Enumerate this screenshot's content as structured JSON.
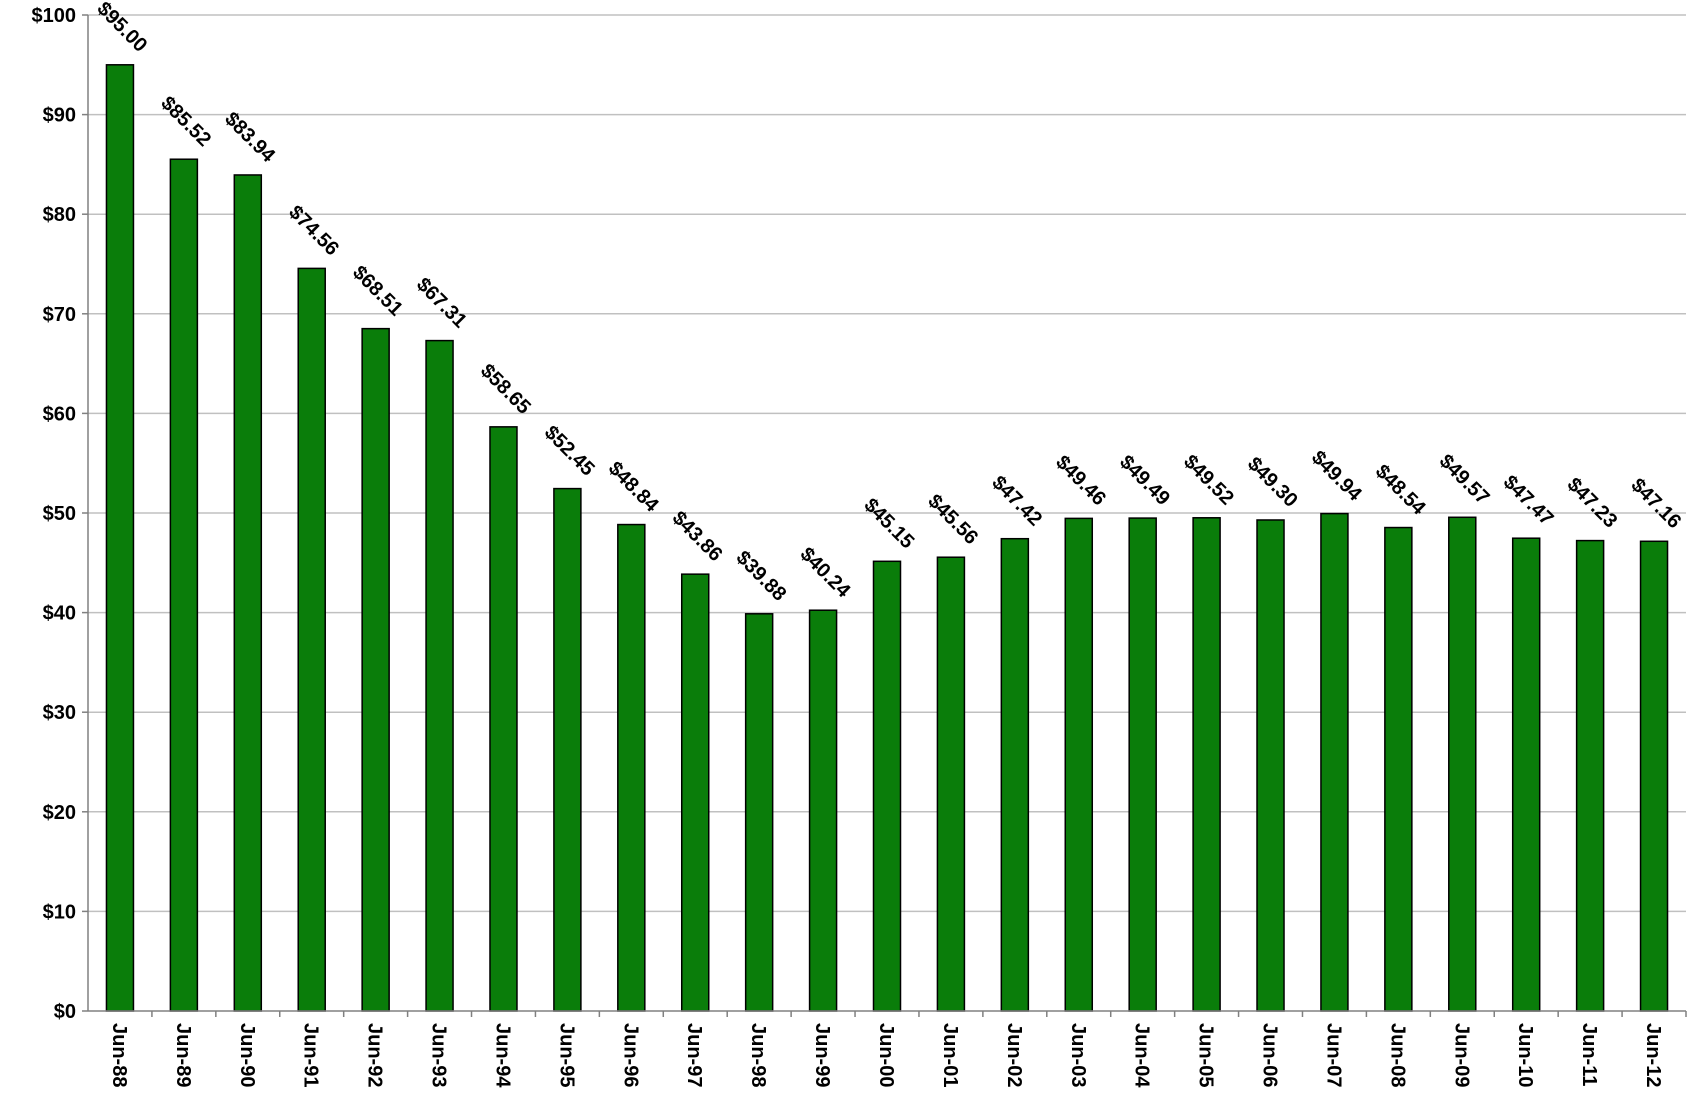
{
  "chart_data": {
    "type": "bar",
    "title": "",
    "xlabel": "",
    "ylabel": "",
    "ylim": [
      0,
      100
    ],
    "y_ticks": [
      "$0",
      "$10",
      "$20",
      "$30",
      "$40",
      "$50",
      "$60",
      "$70",
      "$80",
      "$90",
      "$100"
    ],
    "grid": true,
    "bar_color": "#0a7d0a",
    "categories": [
      "Jun-88",
      "Jun-89",
      "Jun-90",
      "Jun-91",
      "Jun-92",
      "Jun-93",
      "Jun-94",
      "Jun-95",
      "Jun-96",
      "Jun-97",
      "Jun-98",
      "Jun-99",
      "Jun-00",
      "Jun-01",
      "Jun-02",
      "Jun-03",
      "Jun-04",
      "Jun-05",
      "Jun-06",
      "Jun-07",
      "Jun-08",
      "Jun-09",
      "Jun-10",
      "Jun-11",
      "Jun-12"
    ],
    "values": [
      95.0,
      85.52,
      83.94,
      74.56,
      68.51,
      67.31,
      58.65,
      52.45,
      48.84,
      43.86,
      39.88,
      40.24,
      45.15,
      45.56,
      47.42,
      49.46,
      49.49,
      49.52,
      49.3,
      49.94,
      48.54,
      49.57,
      47.47,
      47.23,
      47.16
    ],
    "data_labels": [
      "$95.00",
      "$85.52",
      "$83.94",
      "$74.56",
      "$68.51",
      "$67.31",
      "$58.65",
      "$52.45",
      "$48.84",
      "$43.86",
      "$39.88",
      "$40.24",
      "$45.15",
      "$45.56",
      "$47.42",
      "$49.46",
      "$49.49",
      "$49.52",
      "$49.30",
      "$49.94",
      "$48.54",
      "$49.57",
      "$47.47",
      "$47.23",
      "$47.16"
    ]
  }
}
